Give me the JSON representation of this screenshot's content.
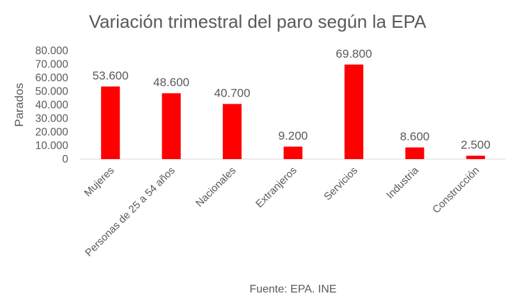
{
  "chart_data": {
    "type": "bar",
    "title": "Variación trimestral del paro según la EPA",
    "ylabel": "Parados",
    "xlabel": "",
    "source": "Fuente: EPA. INE",
    "categories": [
      "Mujeres",
      "Personas de 25 a 54 años",
      "Nacionales",
      "Extranjeros",
      "Servicios",
      "Industria",
      "Construcción"
    ],
    "values": [
      53600,
      48600,
      40700,
      9200,
      69800,
      8600,
      2500
    ],
    "data_labels": [
      "53.600",
      "48.600",
      "40.700",
      "9.200",
      "69.800",
      "8.600",
      "2.500"
    ],
    "ylim": [
      0,
      80000
    ],
    "yticks": [
      0,
      10000,
      20000,
      30000,
      40000,
      50000,
      60000,
      70000,
      80000
    ],
    "ytick_labels": [
      "0",
      "10.000",
      "20.000",
      "30.000",
      "40.000",
      "50.000",
      "60.000",
      "70.000",
      "80.000"
    ],
    "bar_color": "#ff0000",
    "grid": false,
    "legend": "none"
  }
}
